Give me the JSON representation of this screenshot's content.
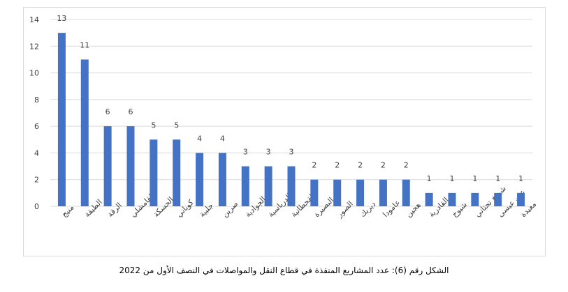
{
  "chart_data": {
    "type": "bar",
    "categories": [
      "منبج",
      "الطبقة",
      "الرقة",
      "القامشلي",
      "الحسكة",
      "كوباني",
      "جلبية",
      "صرين",
      "الجوادية",
      "الدرباسية",
      "القحطانية",
      "البصيرة",
      "الصور",
      "ديريك",
      "عامودا",
      "هجين",
      "القادرية",
      "شيوخ",
      "شيوخ تحتاني",
      "عين عيسى",
      "معبدة"
    ],
    "values": [
      13,
      11,
      6,
      6,
      5,
      5,
      4,
      4,
      3,
      3,
      3,
      2,
      2,
      2,
      2,
      2,
      1,
      1,
      1,
      1,
      1
    ],
    "ylim": [
      0,
      14
    ],
    "yticks": [
      0,
      2,
      4,
      6,
      8,
      10,
      12,
      14
    ],
    "grid": true,
    "legend": "none",
    "bar_color": "#4472C4",
    "grid_color": "#d9d9d9"
  },
  "caption": "الشكل رقم (6): عدد المشاريع المنفذة في قطاع النقل والمواصلات في النصف الأول من 2022"
}
